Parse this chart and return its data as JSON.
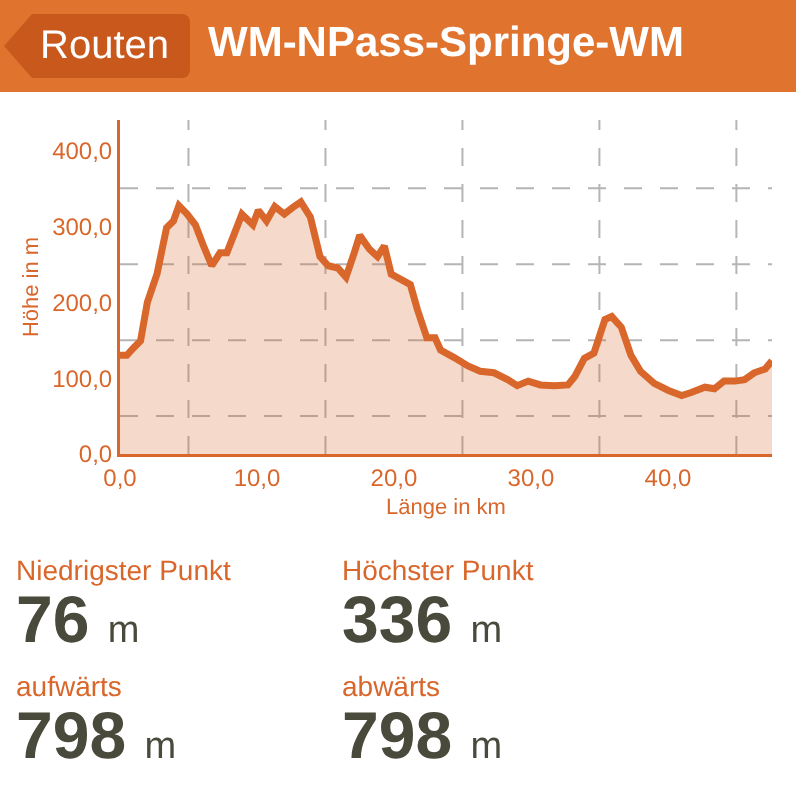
{
  "chart_data": {
    "type": "area",
    "title": "WM-NPass-Springe-WM",
    "xlabel": "Länge in km",
    "ylabel": "Höhe in m",
    "x": [
      0,
      0.5,
      1,
      1.5,
      2,
      2.7,
      3.4,
      3.9,
      4.3,
      4.9,
      5.5,
      6.1,
      6.7,
      7.3,
      7.8,
      8.3,
      8.9,
      9.7,
      10.1,
      10.7,
      11.3,
      12,
      12.7,
      13.2,
      13.9,
      14.6,
      15.2,
      15.9,
      16.5,
      17.1,
      17.5,
      18.2,
      18.8,
      19.3,
      19.8,
      20.5,
      21.2,
      21.7,
      22.4,
      23,
      23.4,
      24.4,
      25.4,
      26.3,
      27.3,
      28.3,
      29,
      29.8,
      30.7,
      31.7,
      32.7,
      33.2,
      33.9,
      34.6,
      35.4,
      35.9,
      36.6,
      37.3,
      38,
      39,
      40,
      41,
      41.7,
      42.7,
      43.4,
      44.1,
      44.9,
      45.6,
      46.3,
      47.1,
      47.6
    ],
    "series": [
      {
        "color": "#d9662a",
        "values": [
          130,
          130,
          140,
          149,
          200,
          237,
          298,
          307,
          327,
          316,
          302,
          274,
          248,
          265,
          265,
          288,
          316,
          302,
          321,
          307,
          326,
          316,
          326,
          332,
          312,
          260,
          248,
          245,
          233,
          265,
          288,
          270,
          260,
          274,
          237,
          230,
          223,
          191,
          153,
          153,
          137,
          127,
          116,
          109,
          107,
          98,
          90,
          96,
          91,
          90,
          91,
          102,
          126,
          133,
          177,
          181,
          167,
          130,
          109,
          93,
          84,
          77,
          81,
          88,
          86,
          96,
          96,
          98,
          107,
          112,
          123
        ]
      }
    ],
    "xlim": [
      0,
      47.6
    ],
    "ylim": [
      0,
      440
    ],
    "xticks": [
      {
        "value": 0,
        "label": "0,0"
      },
      {
        "value": 5,
        "label": null
      },
      {
        "value": 10,
        "label": "10,0"
      },
      {
        "value": 15,
        "label": null
      },
      {
        "value": 20,
        "label": "20,0"
      },
      {
        "value": 25,
        "label": null
      },
      {
        "value": 30,
        "label": "30,0"
      },
      {
        "value": 35,
        "label": null
      },
      {
        "value": 40,
        "label": "40,0"
      },
      {
        "value": 45,
        "label": null
      }
    ],
    "yticks": [
      {
        "value": 0,
        "label": "0,0"
      },
      {
        "value": 50,
        "label": null
      },
      {
        "value": 100,
        "label": "100,0"
      },
      {
        "value": 150,
        "label": null
      },
      {
        "value": 200,
        "label": "200,0"
      },
      {
        "value": 250,
        "label": null
      },
      {
        "value": 300,
        "label": "300,0"
      },
      {
        "value": 350,
        "label": null
      },
      {
        "value": 400,
        "label": "400,0"
      }
    ],
    "grid": true,
    "legend": false,
    "marker": "none",
    "line_style": "solid",
    "annotations": [
      "Routen",
      "Niedrigster Punkt",
      "76 m",
      "Höchster Punkt",
      "336 m",
      "aufwärts",
      "798 m",
      "abwärts",
      "798 m"
    ]
  }
}
